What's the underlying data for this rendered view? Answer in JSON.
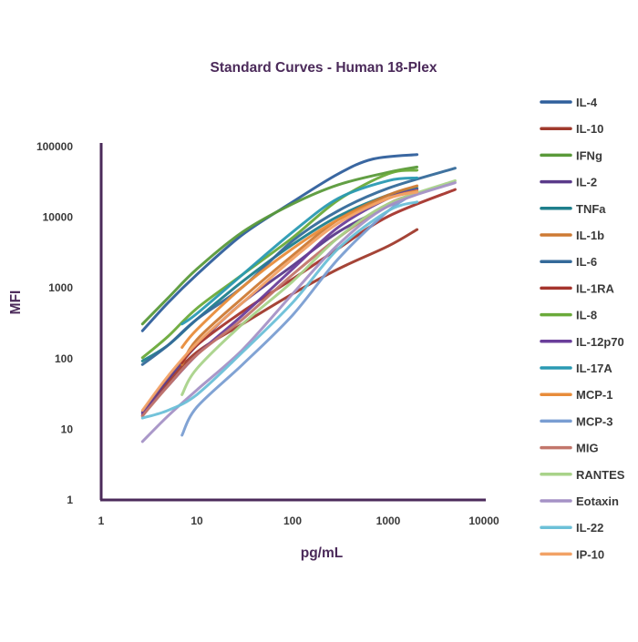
{
  "chart_data": {
    "type": "line",
    "title": "Standard Curves - Human 18-Plex",
    "xlabel": "pg/mL",
    "ylabel": "MFI",
    "x_scale": "log",
    "y_scale": "log",
    "xlim": [
      1,
      10000
    ],
    "ylim": [
      1,
      100000
    ],
    "x_ticks": [
      "1",
      "10",
      "100",
      "1000",
      "10000"
    ],
    "y_ticks": [
      "1",
      "10",
      "100",
      "1000",
      "10000",
      "100000"
    ],
    "legend_position": "right",
    "grid": false,
    "axis_color": "#4b2a5a",
    "series": [
      {
        "name": "IL-4",
        "color": "#2f5f9c",
        "points": [
          [
            2.7,
            240
          ],
          [
            5,
            600
          ],
          [
            10,
            1500
          ],
          [
            30,
            5500
          ],
          [
            100,
            16000
          ],
          [
            300,
            40000
          ],
          [
            700,
            65000
          ],
          [
            2000,
            75000
          ]
        ]
      },
      {
        "name": "IL-10",
        "color": "#a03a2c",
        "points": [
          [
            2.7,
            15
          ],
          [
            5,
            45
          ],
          [
            10,
            120
          ],
          [
            30,
            300
          ],
          [
            100,
            800
          ],
          [
            300,
            1800
          ],
          [
            1000,
            3800
          ],
          [
            2000,
            6500
          ]
        ]
      },
      {
        "name": "IFNg",
        "color": "#5a9a3a",
        "points": [
          [
            2.7,
            300
          ],
          [
            5,
            700
          ],
          [
            10,
            1800
          ],
          [
            30,
            6000
          ],
          [
            100,
            15000
          ],
          [
            300,
            28000
          ],
          [
            1000,
            42000
          ],
          [
            2000,
            50000
          ]
        ]
      },
      {
        "name": "IL-2",
        "color": "#5a3a8a",
        "points": [
          [
            2.7,
            17
          ],
          [
            5,
            50
          ],
          [
            10,
            150
          ],
          [
            30,
            600
          ],
          [
            100,
            2000
          ],
          [
            300,
            6000
          ],
          [
            1000,
            14000
          ],
          [
            2000,
            21000
          ]
        ]
      },
      {
        "name": "TNFa",
        "color": "#1f7f8c",
        "points": [
          [
            2.7,
            90
          ],
          [
            5,
            150
          ],
          [
            10,
            350
          ],
          [
            30,
            1200
          ],
          [
            100,
            4000
          ],
          [
            300,
            10000
          ],
          [
            1000,
            20000
          ],
          [
            2000,
            25000
          ]
        ]
      },
      {
        "name": "IL-1b",
        "color": "#cd7a34",
        "points": [
          [
            7,
            80
          ],
          [
            10,
            180
          ],
          [
            30,
            700
          ],
          [
            100,
            2800
          ],
          [
            300,
            9000
          ],
          [
            1000,
            20000
          ],
          [
            2000,
            27000
          ]
        ]
      },
      {
        "name": "IL-6",
        "color": "#356a9a",
        "points": [
          [
            2.7,
            80
          ],
          [
            5,
            150
          ],
          [
            10,
            350
          ],
          [
            30,
            1000
          ],
          [
            100,
            4500
          ],
          [
            300,
            12000
          ],
          [
            1000,
            25000
          ],
          [
            5000,
            48000
          ]
        ]
      },
      {
        "name": "IL-1RA",
        "color": "#a5352d",
        "points": [
          [
            7,
            85
          ],
          [
            10,
            150
          ],
          [
            30,
            450
          ],
          [
            100,
            1300
          ],
          [
            300,
            3500
          ],
          [
            1000,
            10000
          ],
          [
            5000,
            24000
          ]
        ]
      },
      {
        "name": "IL-8",
        "color": "#6aaa3a",
        "points": [
          [
            2.7,
            100
          ],
          [
            5,
            200
          ],
          [
            10,
            500
          ],
          [
            30,
            1500
          ],
          [
            100,
            5000
          ],
          [
            300,
            17000
          ],
          [
            1000,
            40000
          ],
          [
            2000,
            45000
          ]
        ]
      },
      {
        "name": "IL-12p70",
        "color": "#6a3e9a",
        "points": [
          [
            2.7,
            16
          ],
          [
            5,
            40
          ],
          [
            10,
            110
          ],
          [
            30,
            400
          ],
          [
            100,
            1800
          ],
          [
            300,
            7000
          ],
          [
            1000,
            18000
          ],
          [
            2000,
            24000
          ]
        ]
      },
      {
        "name": "IL-17A",
        "color": "#2a9ab3",
        "points": [
          [
            7,
            300
          ],
          [
            10,
            420
          ],
          [
            30,
            1500
          ],
          [
            100,
            6000
          ],
          [
            300,
            18000
          ],
          [
            1000,
            32000
          ],
          [
            2000,
            35000
          ]
        ]
      },
      {
        "name": "MCP-1",
        "color": "#e88c3a",
        "points": [
          [
            7,
            140
          ],
          [
            10,
            250
          ],
          [
            30,
            1000
          ],
          [
            100,
            3500
          ],
          [
            300,
            9000
          ],
          [
            1000,
            18000
          ],
          [
            2000,
            23000
          ]
        ]
      },
      {
        "name": "MCP-3",
        "color": "#7a9ed2",
        "points": [
          [
            7,
            8
          ],
          [
            10,
            20
          ],
          [
            30,
            80
          ],
          [
            100,
            400
          ],
          [
            300,
            2500
          ],
          [
            1000,
            12000
          ],
          [
            2000,
            22000
          ]
        ]
      },
      {
        "name": "MIG",
        "color": "#c2766b",
        "points": [
          [
            2.7,
            15
          ],
          [
            5,
            40
          ],
          [
            10,
            110
          ],
          [
            30,
            350
          ],
          [
            100,
            1500
          ],
          [
            300,
            5000
          ],
          [
            1000,
            15000
          ],
          [
            2000,
            21000
          ]
        ]
      },
      {
        "name": "RANTES",
        "color": "#a9d38a",
        "points": [
          [
            7,
            30
          ],
          [
            10,
            70
          ],
          [
            30,
            300
          ],
          [
            100,
            1200
          ],
          [
            300,
            5000
          ],
          [
            1000,
            15000
          ],
          [
            5000,
            32000
          ]
        ]
      },
      {
        "name": "Eotaxin",
        "color": "#a592c6",
        "points": [
          [
            2.7,
            6.5
          ],
          [
            5,
            15
          ],
          [
            10,
            35
          ],
          [
            30,
            130
          ],
          [
            100,
            800
          ],
          [
            300,
            4000
          ],
          [
            1000,
            14000
          ],
          [
            5000,
            30000
          ]
        ]
      },
      {
        "name": "IL-22",
        "color": "#6cc0d8",
        "points": [
          [
            2.7,
            14
          ],
          [
            5,
            18
          ],
          [
            10,
            30
          ],
          [
            30,
            120
          ],
          [
            100,
            600
          ],
          [
            300,
            3500
          ],
          [
            1000,
            12000
          ],
          [
            2000,
            16000
          ]
        ]
      },
      {
        "name": "IP-10",
        "color": "#f2a266",
        "points": [
          [
            2.7,
            18
          ],
          [
            5,
            55
          ],
          [
            10,
            160
          ],
          [
            30,
            600
          ],
          [
            100,
            2500
          ],
          [
            300,
            8000
          ],
          [
            1000,
            18000
          ],
          [
            2000,
            22000
          ]
        ]
      }
    ]
  }
}
